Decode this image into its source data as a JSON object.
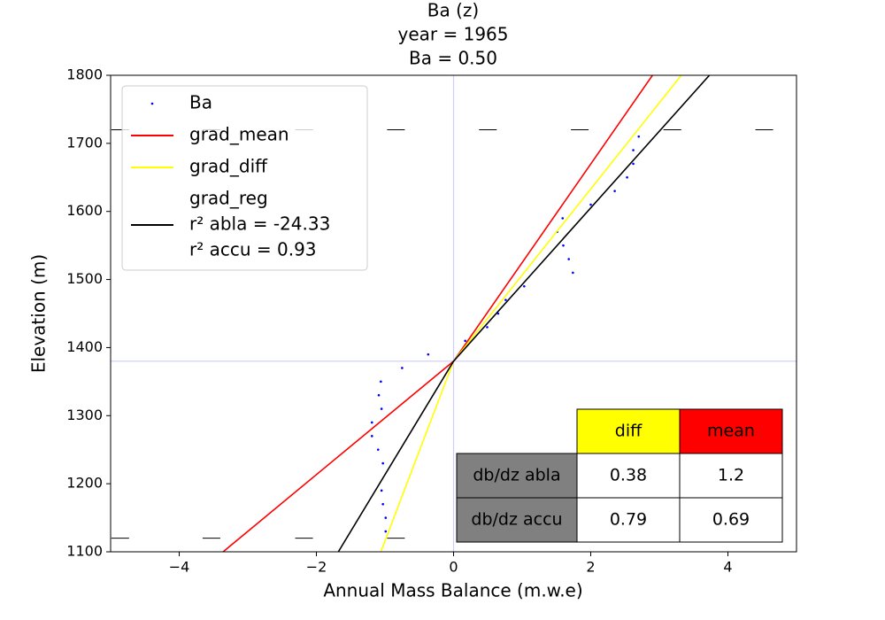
{
  "chart_data": {
    "type": "line",
    "title": [
      "Ba (z)",
      "year = 1965",
      "Ba = 0.50"
    ],
    "xlabel": "Annual Mass Balance (m.w.e)",
    "ylabel": "Elevation (m)",
    "xlim": [
      -5,
      5
    ],
    "ylim": [
      1100,
      1800
    ],
    "xticks": [
      {
        "value": -4,
        "label": "−4"
      },
      {
        "value": -2,
        "label": "−2"
      },
      0,
      2,
      4
    ],
    "yticks": [
      1100,
      1200,
      1300,
      1400,
      1500,
      1600,
      1700,
      1800
    ],
    "reference_lines": {
      "color": "#ccccff",
      "x": 0,
      "y": 1380
    },
    "series": [
      {
        "name": "Ba",
        "type": "scatter",
        "color": "#0000ff",
        "x": [
          2.7,
          2.62,
          2.62,
          2.53,
          2.35,
          2.0,
          1.59,
          1.51,
          1.6,
          1.68,
          1.74,
          1.03,
          0.76,
          0.65,
          0.49,
          0.17,
          -0.37,
          -0.75,
          -1.06,
          -1.09,
          -1.05,
          -1.19,
          -1.19,
          -1.1,
          -1.03,
          -1.05,
          -1.03,
          -0.99,
          -0.99
        ],
        "values": [
          1710,
          1690,
          1670,
          1650,
          1630,
          1610,
          1590,
          1570,
          1550,
          1530,
          1510,
          1490,
          1470,
          1450,
          1430,
          1410,
          1390,
          1370,
          1350,
          1330,
          1310,
          1290,
          1270,
          1250,
          1230,
          1190,
          1170,
          1150,
          1130
        ]
      },
      {
        "name": "grad_mean",
        "type": "line",
        "color": "#ff0000",
        "x": [
          -3.36,
          0,
          2.9
        ],
        "values": [
          1100,
          1380,
          1800
        ]
      },
      {
        "name": "grad_diff",
        "type": "line",
        "color": "#ffff00",
        "x": [
          -1.06,
          0,
          3.32
        ],
        "values": [
          1100,
          1380,
          1800
        ]
      },
      {
        "name": "grad_reg",
        "type": "line",
        "color": "#000000",
        "legend_extra": [
          "r² abla = -24.33",
          "r² accu = 0.93"
        ],
        "x": [
          -1.68,
          0,
          3.73
        ],
        "values": [
          1100,
          1380,
          1800
        ]
      }
    ],
    "dash_markers": {
      "color": "#000000",
      "x": [
        -4.86,
        -3.53,
        -2.18,
        -0.84,
        0.5,
        1.84,
        3.19,
        4.53,
        -4.86,
        -3.53,
        -2.18,
        -0.84,
        0.5,
        1.84,
        3.19,
        4.53
      ],
      "values": [
        1720,
        1720,
        1720,
        1720,
        1720,
        1720,
        1720,
        1720,
        1120,
        1120,
        1120,
        1120,
        1120,
        1120,
        1120,
        1120
      ]
    },
    "table": {
      "columns": [
        {
          "label": "diff",
          "color": "#ffff00"
        },
        {
          "label": "mean",
          "color": "#ff0000"
        }
      ],
      "row_color": "#808080",
      "rows": [
        {
          "label": "db/dz abla",
          "values": [
            0.38,
            1.2
          ]
        },
        {
          "label": "db/dz accu",
          "values": [
            0.79,
            0.69
          ]
        }
      ]
    }
  }
}
